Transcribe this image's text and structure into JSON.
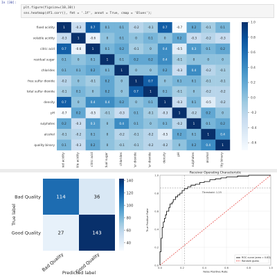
{
  "cell": {
    "prompt": "In [30]:",
    "code_lines": [
      "plt.figure(figsize=(10,10))",
      "sns.heatmap(df1.corr(), fmt = '.1f', annot = True, cmap = 'Blues');"
    ]
  },
  "chart_data": [
    {
      "type": "heatmap",
      "title": "",
      "labels": [
        "fixed acidity",
        "volatile acidity",
        "citric acid",
        "residual sugar",
        "chlorides",
        "free sulfur dioxide",
        "total sulfur dioxide",
        "density",
        "pH",
        "sulphates",
        "alcohol",
        "quality binary"
      ],
      "matrix": [
        [
          1.0,
          -0.3,
          0.7,
          0.1,
          0.1,
          -0.2,
          -0.1,
          0.7,
          -0.7,
          0.2,
          -0.1,
          0.1
        ],
        [
          -0.3,
          1.0,
          -0.6,
          0.0,
          0.1,
          -0.0,
          0.1,
          0.0,
          0.2,
          -0.3,
          -0.2,
          -0.3
        ],
        [
          0.7,
          -0.6,
          1.0,
          0.1,
          0.2,
          -0.1,
          0.0,
          0.4,
          -0.5,
          0.3,
          0.1,
          0.2
        ],
        [
          0.1,
          0.0,
          0.1,
          1.0,
          0.1,
          0.2,
          0.2,
          0.4,
          -0.1,
          0.0,
          0.0,
          -0.0
        ],
        [
          0.1,
          0.1,
          0.2,
          0.1,
          1.0,
          0.0,
          0.0,
          0.2,
          -0.3,
          0.4,
          -0.2,
          -0.1
        ],
        [
          -0.2,
          -0.0,
          -0.1,
          0.2,
          0.0,
          1.0,
          0.7,
          -0.0,
          0.1,
          0.1,
          -0.1,
          -0.1
        ],
        [
          -0.1,
          0.1,
          0.0,
          0.2,
          0.0,
          0.7,
          1.0,
          0.1,
          -0.1,
          0.0,
          -0.2,
          -0.2
        ],
        [
          0.7,
          0.0,
          0.4,
          0.4,
          0.2,
          -0.0,
          0.1,
          1.0,
          -0.3,
          0.1,
          -0.5,
          -0.2
        ],
        [
          -0.7,
          0.2,
          -0.5,
          -0.1,
          -0.3,
          0.1,
          -0.1,
          -0.3,
          1.0,
          -0.2,
          0.2,
          -0.0
        ],
        [
          0.2,
          -0.3,
          0.3,
          0.0,
          0.4,
          0.1,
          0.0,
          0.1,
          -0.2,
          1.0,
          0.1,
          0.2
        ],
        [
          -0.1,
          -0.2,
          0.1,
          0.0,
          -0.2,
          -0.1,
          -0.2,
          -0.5,
          0.2,
          0.1,
          1.0,
          0.4
        ],
        [
          0.1,
          -0.3,
          0.2,
          -0.0,
          -0.1,
          -0.1,
          -0.2,
          -0.2,
          -0.0,
          0.2,
          0.4,
          1.0
        ]
      ],
      "colorbar_ticks": [
        "1.0",
        "0.8",
        "0.6",
        "0.4",
        "0.2",
        "0.0",
        "-0.2",
        "-0.4",
        "-0.6"
      ],
      "vmin": -0.7,
      "vmax": 1.0,
      "cmap": "Blues"
    },
    {
      "type": "heatmap",
      "title": "",
      "row_labels": [
        "Bad Quality",
        "Good Quality"
      ],
      "col_labels": [
        "Bad Quality",
        "Good Quality"
      ],
      "matrix": [
        [
          114,
          36
        ],
        [
          27,
          143
        ]
      ],
      "xlabel": "Predicted label",
      "ylabel": "True label",
      "colorbar_ticks": [
        "140",
        "120",
        "100",
        "80",
        "60",
        "40"
      ],
      "vmin": 27,
      "vmax": 143,
      "cmap": "Blues"
    },
    {
      "type": "line",
      "title": "Receiver Operating Characteristic",
      "xlabel": "False Positive Rate",
      "ylabel": "True Positive Rate",
      "xlim": [
        0,
        1
      ],
      "ylim": [
        0,
        1
      ],
      "x_ticks": [
        "0.0",
        "0.2",
        "0.4",
        "0.6",
        "0.8",
        "1.0"
      ],
      "y_ticks": [
        "0.0",
        "0.2",
        "0.4",
        "0.6",
        "0.8",
        "1.0"
      ],
      "threshold_label": "Threshold: 1.25",
      "grid": true,
      "legend_placement": "bottom-right",
      "series": [
        {
          "name": "ROC curve (area = 0.83)",
          "color": "#000000",
          "x": [
            0,
            0,
            0.01,
            0.01,
            0.02,
            0.02,
            0.03,
            0.04,
            0.05,
            0.06,
            0.08,
            0.09,
            0.11,
            0.12,
            0.14,
            0.16,
            0.18,
            0.2,
            0.22,
            0.25,
            0.28,
            0.32,
            0.36,
            0.4,
            0.45,
            0.5,
            0.55,
            0.6,
            0.7,
            0.8,
            0.9,
            1.0
          ],
          "y": [
            0,
            0.15,
            0.22,
            0.3,
            0.35,
            0.42,
            0.48,
            0.52,
            0.56,
            0.6,
            0.64,
            0.68,
            0.7,
            0.73,
            0.76,
            0.78,
            0.8,
            0.83,
            0.85,
            0.87,
            0.89,
            0.9,
            0.92,
            0.93,
            0.95,
            0.96,
            0.97,
            0.98,
            0.99,
            1.0,
            1.0,
            1.0
          ]
        },
        {
          "name": "Random guess",
          "color": "#e53935",
          "x": [
            0,
            1
          ],
          "y": [
            0,
            1
          ]
        }
      ],
      "reference_lines": {
        "vline": 0.22,
        "hline": 0.86
      }
    }
  ]
}
